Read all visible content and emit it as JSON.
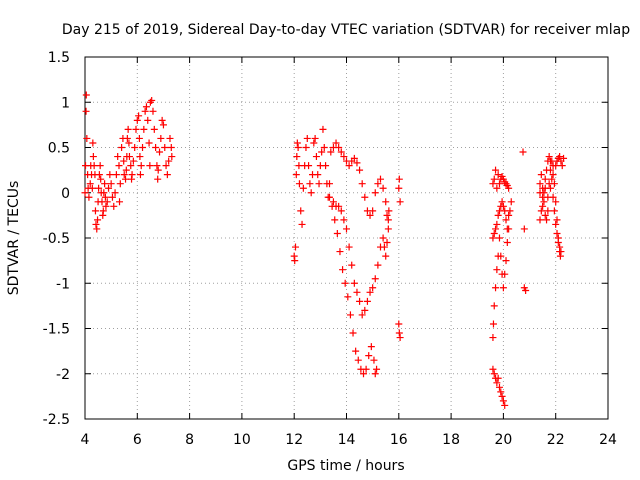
{
  "chart_data": {
    "type": "scatter",
    "title": "Day 215 of 2019, Sidereal Day-to-day VTEC variation (SDTVAR) for receiver mlap",
    "xlabel": "GPS time / hours",
    "ylabel": "SDTVAR / TECUs",
    "xlim": [
      4,
      24
    ],
    "ylim": [
      -2.5,
      1.5
    ],
    "xticks": [
      "4",
      "6",
      "8",
      "10",
      "12",
      "14",
      "16",
      "18",
      "20",
      "22",
      "24"
    ],
    "yticks": [
      "1.5",
      "1",
      "0.5",
      "0",
      "-0.5",
      "-1",
      "-1.5",
      "-2",
      "-2.5"
    ],
    "grid": true,
    "marker": "+",
    "colors": {
      "series": "#ff0000",
      "axis": "#000000",
      "grid": "#a0a0a0"
    },
    "series": [
      {
        "name": "SDTVAR",
        "points": [
          [
            4.0,
            0.0
          ],
          [
            4.02,
            0.3
          ],
          [
            4.04,
            0.9
          ],
          [
            4.05,
            1.08
          ],
          [
            4.07,
            0.6
          ],
          [
            4.1,
            0.2
          ],
          [
            4.12,
            0.05
          ],
          [
            4.15,
            -0.05
          ],
          [
            4.2,
            0.1
          ],
          [
            4.22,
            0.3
          ],
          [
            4.25,
            0.2
          ],
          [
            4.28,
            0.05
          ],
          [
            4.3,
            0.55
          ],
          [
            4.32,
            0.4
          ],
          [
            4.35,
            0.3
          ],
          [
            4.38,
            0.2
          ],
          [
            4.4,
            -0.2
          ],
          [
            4.42,
            -0.35
          ],
          [
            4.45,
            -0.4
          ],
          [
            4.48,
            -0.3
          ],
          [
            4.5,
            -0.1
          ],
          [
            4.52,
            0.05
          ],
          [
            4.55,
            0.2
          ],
          [
            4.58,
            0.3
          ],
          [
            4.6,
            0.15
          ],
          [
            4.62,
            0.0
          ],
          [
            4.65,
            -0.1
          ],
          [
            4.68,
            -0.25
          ],
          [
            4.7,
            -0.2
          ],
          [
            4.72,
            0.0
          ],
          [
            4.75,
            0.1
          ],
          [
            4.78,
            -0.05
          ],
          [
            4.8,
            -0.15
          ],
          [
            4.85,
            -0.1
          ],
          [
            4.9,
            0.05
          ],
          [
            4.95,
            0.2
          ],
          [
            5.0,
            0.1
          ],
          [
            5.05,
            -0.05
          ],
          [
            5.1,
            -0.15
          ],
          [
            5.15,
            0.0
          ],
          [
            5.2,
            0.2
          ],
          [
            5.25,
            0.4
          ],
          [
            5.3,
            0.3
          ],
          [
            5.32,
            -0.1
          ],
          [
            5.35,
            0.1
          ],
          [
            5.4,
            0.5
          ],
          [
            5.45,
            0.6
          ],
          [
            5.48,
            0.35
          ],
          [
            5.5,
            0.2
          ],
          [
            5.55,
            0.15
          ],
          [
            5.58,
            0.25
          ],
          [
            5.6,
            0.4
          ],
          [
            5.62,
            0.6
          ],
          [
            5.65,
            0.7
          ],
          [
            5.68,
            0.55
          ],
          [
            5.7,
            0.4
          ],
          [
            5.75,
            0.3
          ],
          [
            5.78,
            0.15
          ],
          [
            5.8,
            0.2
          ],
          [
            5.85,
            0.35
          ],
          [
            5.9,
            0.5
          ],
          [
            5.95,
            0.7
          ],
          [
            6.0,
            0.8
          ],
          [
            6.05,
            0.85
          ],
          [
            6.08,
            0.6
          ],
          [
            6.1,
            0.4
          ],
          [
            6.12,
            0.2
          ],
          [
            6.15,
            0.3
          ],
          [
            6.2,
            0.5
          ],
          [
            6.25,
            0.7
          ],
          [
            6.3,
            0.9
          ],
          [
            6.35,
            0.95
          ],
          [
            6.4,
            0.8
          ],
          [
            6.45,
            0.55
          ],
          [
            6.48,
            0.3
          ],
          [
            6.5,
            1.0
          ],
          [
            6.55,
            1.02
          ],
          [
            6.6,
            0.9
          ],
          [
            6.65,
            0.7
          ],
          [
            6.7,
            0.5
          ],
          [
            6.75,
            0.3
          ],
          [
            6.78,
            0.15
          ],
          [
            6.8,
            0.25
          ],
          [
            6.85,
            0.45
          ],
          [
            6.9,
            0.6
          ],
          [
            6.95,
            0.8
          ],
          [
            7.0,
            0.75
          ],
          [
            7.05,
            0.5
          ],
          [
            7.1,
            0.3
          ],
          [
            7.15,
            0.2
          ],
          [
            7.2,
            0.35
          ],
          [
            7.25,
            0.6
          ],
          [
            7.3,
            0.5
          ],
          [
            7.32,
            0.4
          ],
          [
            12.0,
            -0.7
          ],
          [
            12.02,
            -0.75
          ],
          [
            12.05,
            -0.6
          ],
          [
            12.08,
            0.2
          ],
          [
            12.1,
            0.4
          ],
          [
            12.12,
            0.55
          ],
          [
            12.15,
            0.5
          ],
          [
            12.18,
            0.3
          ],
          [
            12.2,
            0.1
          ],
          [
            12.25,
            -0.2
          ],
          [
            12.3,
            -0.35
          ],
          [
            12.35,
            0.05
          ],
          [
            12.4,
            0.3
          ],
          [
            12.45,
            0.5
          ],
          [
            12.5,
            0.6
          ],
          [
            12.55,
            0.3
          ],
          [
            12.6,
            0.1
          ],
          [
            12.65,
            0.0
          ],
          [
            12.7,
            0.2
          ],
          [
            12.75,
            0.55
          ],
          [
            12.8,
            0.6
          ],
          [
            12.85,
            0.4
          ],
          [
            12.9,
            0.2
          ],
          [
            12.95,
            0.1
          ],
          [
            13.0,
            0.3
          ],
          [
            13.05,
            0.45
          ],
          [
            13.1,
            0.7
          ],
          [
            13.15,
            0.5
          ],
          [
            13.2,
            0.3
          ],
          [
            13.25,
            0.1
          ],
          [
            13.3,
            -0.05
          ],
          [
            13.35,
            0.1
          ],
          [
            13.4,
            0.45
          ],
          [
            13.5,
            0.5
          ],
          [
            13.6,
            0.55
          ],
          [
            13.7,
            0.5
          ],
          [
            13.8,
            0.45
          ],
          [
            13.9,
            0.4
          ],
          [
            14.0,
            0.35
          ],
          [
            14.1,
            0.3
          ],
          [
            14.2,
            0.35
          ],
          [
            14.3,
            0.38
          ],
          [
            14.4,
            0.33
          ],
          [
            14.5,
            0.25
          ],
          [
            14.6,
            0.1
          ],
          [
            14.7,
            -0.05
          ],
          [
            14.8,
            -0.2
          ],
          [
            14.9,
            -0.25
          ],
          [
            15.0,
            -0.2
          ],
          [
            15.1,
            0.0
          ],
          [
            15.2,
            0.1
          ],
          [
            15.3,
            0.15
          ],
          [
            15.4,
            0.05
          ],
          [
            15.5,
            -0.1
          ],
          [
            15.55,
            -0.25
          ],
          [
            15.6,
            -0.3
          ],
          [
            13.35,
            -0.05
          ],
          [
            13.45,
            -0.15
          ],
          [
            13.55,
            -0.3
          ],
          [
            13.65,
            -0.45
          ],
          [
            13.75,
            -0.65
          ],
          [
            13.85,
            -0.85
          ],
          [
            13.95,
            -1.0
          ],
          [
            14.05,
            -1.15
          ],
          [
            14.15,
            -1.35
          ],
          [
            14.25,
            -1.55
          ],
          [
            14.35,
            -1.75
          ],
          [
            14.45,
            -1.85
          ],
          [
            14.55,
            -1.95
          ],
          [
            14.65,
            -2.0
          ],
          [
            14.75,
            -1.95
          ],
          [
            14.85,
            -1.8
          ],
          [
            14.95,
            -1.7
          ],
          [
            15.05,
            -1.85
          ],
          [
            15.1,
            -2.0
          ],
          [
            15.15,
            -1.95
          ],
          [
            13.5,
            -0.1
          ],
          [
            13.6,
            -0.15
          ],
          [
            13.7,
            -0.15
          ],
          [
            13.8,
            -0.2
          ],
          [
            13.9,
            -0.3
          ],
          [
            14.0,
            -0.4
          ],
          [
            14.1,
            -0.6
          ],
          [
            14.2,
            -0.8
          ],
          [
            14.3,
            -1.0
          ],
          [
            14.4,
            -1.1
          ],
          [
            14.5,
            -1.2
          ],
          [
            14.6,
            -1.35
          ],
          [
            14.7,
            -1.3
          ],
          [
            14.8,
            -1.2
          ],
          [
            14.9,
            -1.1
          ],
          [
            15.0,
            -1.05
          ],
          [
            15.1,
            -0.95
          ],
          [
            15.2,
            -0.8
          ],
          [
            15.3,
            -0.6
          ],
          [
            15.4,
            -0.5
          ],
          [
            15.45,
            -0.6
          ],
          [
            15.5,
            -0.7
          ],
          [
            15.55,
            -0.55
          ],
          [
            15.6,
            -0.4
          ],
          [
            15.62,
            -0.2
          ],
          [
            16.0,
            0.05
          ],
          [
            16.02,
            0.15
          ],
          [
            16.05,
            -0.1
          ],
          [
            16.0,
            -1.45
          ],
          [
            16.02,
            -1.55
          ],
          [
            16.05,
            -1.6
          ],
          [
            19.6,
            0.1
          ],
          [
            19.65,
            0.15
          ],
          [
            19.7,
            0.25
          ],
          [
            19.75,
            0.05
          ],
          [
            19.8,
            0.2
          ],
          [
            19.85,
            0.1
          ],
          [
            19.9,
            0.15
          ],
          [
            19.95,
            0.18
          ],
          [
            20.0,
            0.15
          ],
          [
            20.05,
            0.12
          ],
          [
            20.1,
            0.1
          ],
          [
            20.15,
            0.08
          ],
          [
            20.2,
            0.05
          ],
          [
            19.6,
            -0.5
          ],
          [
            19.65,
            -0.45
          ],
          [
            19.7,
            -0.4
          ],
          [
            19.75,
            -0.35
          ],
          [
            19.8,
            -0.25
          ],
          [
            19.85,
            -0.2
          ],
          [
            19.9,
            -0.15
          ],
          [
            19.95,
            -0.1
          ],
          [
            20.0,
            -0.15
          ],
          [
            20.05,
            -0.2
          ],
          [
            20.1,
            -0.3
          ],
          [
            20.15,
            -0.4
          ],
          [
            20.2,
            -0.25
          ],
          [
            19.6,
            -1.6
          ],
          [
            19.62,
            -1.45
          ],
          [
            19.65,
            -1.25
          ],
          [
            19.7,
            -1.05
          ],
          [
            19.75,
            -0.85
          ],
          [
            19.8,
            -0.7
          ],
          [
            19.85,
            -0.5
          ],
          [
            19.9,
            -0.7
          ],
          [
            19.95,
            -0.9
          ],
          [
            20.0,
            -1.05
          ],
          [
            20.05,
            -0.9
          ],
          [
            20.1,
            -0.75
          ],
          [
            20.15,
            -0.55
          ],
          [
            20.2,
            -0.4
          ],
          [
            20.25,
            -0.2
          ],
          [
            20.3,
            -0.1
          ],
          [
            19.6,
            -1.95
          ],
          [
            19.65,
            -2.0
          ],
          [
            19.7,
            -2.05
          ],
          [
            19.75,
            -2.1
          ],
          [
            19.8,
            -2.05
          ],
          [
            19.85,
            -2.15
          ],
          [
            19.9,
            -2.2
          ],
          [
            19.95,
            -2.25
          ],
          [
            20.0,
            -2.3
          ],
          [
            20.05,
            -2.35
          ],
          [
            20.75,
            0.45
          ],
          [
            20.8,
            -0.4
          ],
          [
            20.8,
            -1.05
          ],
          [
            20.85,
            -1.08
          ],
          [
            21.4,
            0.1
          ],
          [
            21.45,
            0.2
          ],
          [
            21.5,
            0.05
          ],
          [
            21.55,
            -0.1
          ],
          [
            21.6,
            -0.25
          ],
          [
            21.65,
            -0.3
          ],
          [
            21.7,
            -0.2
          ],
          [
            21.75,
            0.1
          ],
          [
            21.8,
            0.25
          ],
          [
            21.85,
            0.35
          ],
          [
            21.9,
            0.3
          ],
          [
            21.95,
            0.1
          ],
          [
            22.0,
            -0.1
          ],
          [
            22.05,
            -0.3
          ],
          [
            22.1,
            -0.5
          ],
          [
            22.15,
            -0.65
          ],
          [
            22.18,
            -0.7
          ],
          [
            21.4,
            -0.3
          ],
          [
            21.45,
            -0.2
          ],
          [
            21.5,
            -0.15
          ],
          [
            21.55,
            0.0
          ],
          [
            21.6,
            0.15
          ],
          [
            21.65,
            0.25
          ],
          [
            21.7,
            0.35
          ],
          [
            21.75,
            0.4
          ],
          [
            21.8,
            0.35
          ],
          [
            21.85,
            0.15
          ],
          [
            21.9,
            -0.05
          ],
          [
            21.95,
            -0.2
          ],
          [
            22.0,
            -0.35
          ],
          [
            22.05,
            -0.45
          ],
          [
            22.1,
            -0.55
          ],
          [
            22.15,
            -0.6
          ],
          [
            22.2,
            -0.65
          ],
          [
            21.4,
            0.0
          ],
          [
            21.5,
            -0.05
          ],
          [
            21.6,
            0.05
          ],
          [
            21.7,
            -0.05
          ],
          [
            21.8,
            0.05
          ],
          [
            21.9,
            0.2
          ],
          [
            22.0,
            0.3
          ],
          [
            22.05,
            0.35
          ],
          [
            22.1,
            0.38
          ],
          [
            22.15,
            0.4
          ],
          [
            22.2,
            0.35
          ],
          [
            22.25,
            0.3
          ],
          [
            22.3,
            0.38
          ]
        ]
      }
    ]
  }
}
